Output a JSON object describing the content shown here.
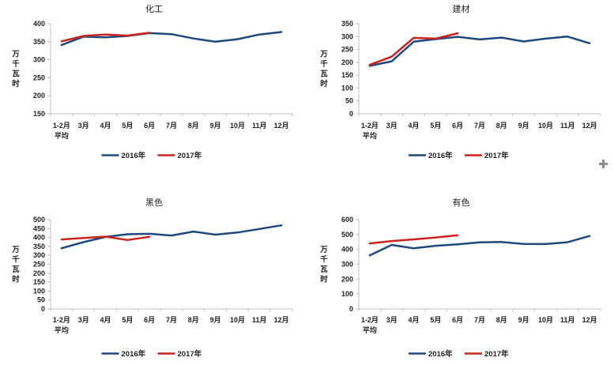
{
  "app": {
    "background": "#FFFFFF"
  },
  "colors": {
    "series_2016": "#1F497D",
    "series_2017": "#CB241E",
    "axis_line": "#BFBFBF",
    "label_text": "#1F1F1F",
    "cursor_plus": "#8C8C8C"
  },
  "cursor": {
    "type": "fill-handle-plus"
  },
  "chart_data": [
    {
      "type": "line",
      "title": "化工",
      "ylabel": "万千瓦时",
      "categories": [
        "1-2月\n平均",
        "3月",
        "4月",
        "5月",
        "6月",
        "7月",
        "8月",
        "9月",
        "10月",
        "11月",
        "12月"
      ],
      "series": [
        {
          "name": "2016年",
          "color": "#1F497D",
          "values": [
            341,
            364,
            362,
            366,
            374,
            371,
            359,
            350,
            357,
            370,
            377
          ]
        },
        {
          "name": "2017年",
          "color": "#CB241E",
          "values": [
            351,
            366,
            370,
            367,
            375
          ]
        }
      ],
      "ylim": [
        150,
        400
      ],
      "ytick_step": 50,
      "grid": false,
      "legend_position": "bottom"
    },
    {
      "type": "line",
      "title": "建材",
      "ylabel": "万千瓦时",
      "categories": [
        "1-2月\n平均",
        "3月",
        "4月",
        "5月",
        "6月",
        "7月",
        "8月",
        "9月",
        "10月",
        "11月",
        "12月"
      ],
      "series": [
        {
          "name": "2016年",
          "color": "#1F497D",
          "values": [
            186,
            204,
            280,
            290,
            299,
            289,
            296,
            281,
            292,
            300,
            274
          ]
        },
        {
          "name": "2017年",
          "color": "#CB241E",
          "values": [
            190,
            222,
            295,
            292,
            313
          ]
        }
      ],
      "ylim": [
        0,
        350
      ],
      "ytick_step": 50,
      "grid": false,
      "legend_position": "bottom"
    },
    {
      "type": "line",
      "title": "黑色",
      "ylabel": "万千瓦时",
      "categories": [
        "1-2月\n平均",
        "3月",
        "4月",
        "5月",
        "6月",
        "7月",
        "8月",
        "9月",
        "10月",
        "11月",
        "12月"
      ],
      "series": [
        {
          "name": "2016年",
          "color": "#1F497D",
          "values": [
            340,
            374,
            403,
            418,
            421,
            411,
            433,
            416,
            428,
            448,
            468
          ]
        },
        {
          "name": "2017年",
          "color": "#CB241E",
          "values": [
            389,
            397,
            405,
            386,
            404
          ]
        }
      ],
      "ylim": [
        0,
        500
      ],
      "ytick_step": 50,
      "grid": false,
      "legend_position": "bottom"
    },
    {
      "type": "line",
      "title": "有色",
      "ylabel": "万千瓦时",
      "categories": [
        "1-2月\n平均",
        "3月",
        "4月",
        "5月",
        "6月",
        "7月",
        "8月",
        "9月",
        "10月",
        "11月",
        "12月"
      ],
      "series": [
        {
          "name": "2016年",
          "color": "#1F497D",
          "values": [
            360,
            430,
            407,
            424,
            434,
            447,
            450,
            437,
            436,
            448,
            490
          ]
        },
        {
          "name": "2017年",
          "color": "#CB241E",
          "values": [
            440,
            456,
            467,
            480,
            495
          ]
        }
      ],
      "ylim": [
        0,
        600
      ],
      "ytick_step": 100,
      "grid": false,
      "legend_position": "bottom"
    }
  ]
}
